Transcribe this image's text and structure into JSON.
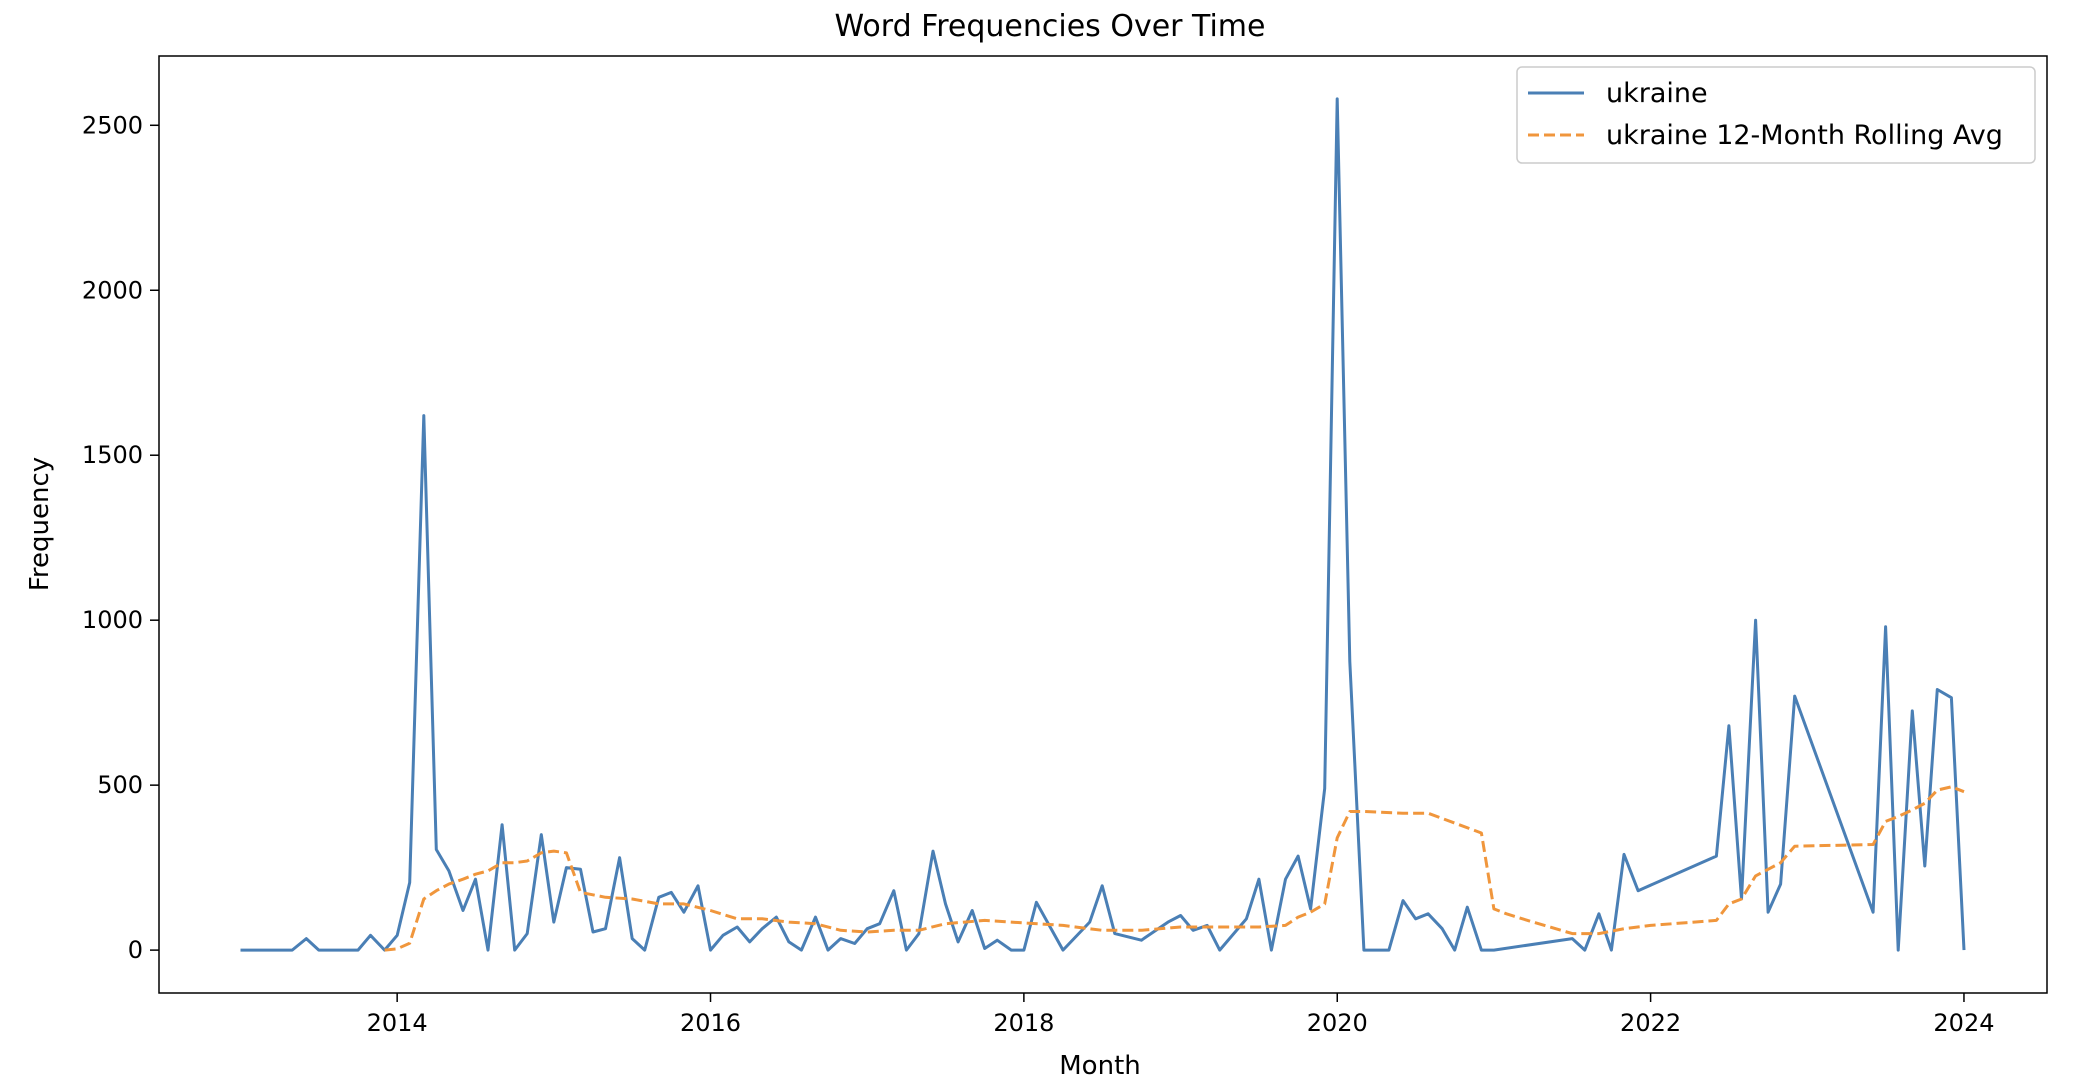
{
  "chart_data": {
    "type": "line",
    "title": "Word Frequencies Over Time",
    "xlabel": "Month",
    "ylabel": "Frequency",
    "xlim": [
      2012.48,
      2024.53
    ],
    "ylim": [
      -130,
      2710
    ],
    "xticks": [
      2014,
      2016,
      2018,
      2020,
      2022,
      2024
    ],
    "yticks": [
      0,
      500,
      1000,
      1500,
      2000,
      2500
    ],
    "grid": false,
    "legend_position": "top-right",
    "colors": {
      "series": "#4a7fb5",
      "rolling": "#f0963c",
      "axes": "#000000"
    },
    "series": [
      {
        "name": "ukraine",
        "style": "solid",
        "x": [
          2013.0,
          2013.33,
          2013.42,
          2013.5,
          2013.75,
          2013.83,
          2013.92,
          2014.0,
          2014.08,
          2014.17,
          2014.25,
          2014.33,
          2014.42,
          2014.5,
          2014.58,
          2014.67,
          2014.75,
          2014.83,
          2014.92,
          2015.0,
          2015.08,
          2015.17,
          2015.25,
          2015.33,
          2015.42,
          2015.5,
          2015.58,
          2015.67,
          2015.75,
          2015.83,
          2015.92,
          2016.0,
          2016.08,
          2016.17,
          2016.25,
          2016.33,
          2016.42,
          2016.5,
          2016.58,
          2016.67,
          2016.75,
          2016.83,
          2016.92,
          2017.0,
          2017.08,
          2017.17,
          2017.25,
          2017.33,
          2017.42,
          2017.5,
          2017.58,
          2017.67,
          2017.75,
          2017.83,
          2017.92,
          2018.0,
          2018.08,
          2018.25,
          2018.42,
          2018.5,
          2018.58,
          2018.75,
          2018.92,
          2019.0,
          2019.08,
          2019.17,
          2019.25,
          2019.42,
          2019.5,
          2019.58,
          2019.67,
          2019.75,
          2019.83,
          2019.92,
          2020.0,
          2020.08,
          2020.17,
          2020.33,
          2020.42,
          2020.5,
          2020.58,
          2020.67,
          2020.75,
          2020.83,
          2020.92,
          2021.0,
          2021.5,
          2021.58,
          2021.67,
          2021.75,
          2021.83,
          2021.92,
          2022.42,
          2022.5,
          2022.58,
          2022.67,
          2022.75,
          2022.83,
          2022.92,
          2023.42,
          2023.5,
          2023.58,
          2023.67,
          2023.75,
          2023.83,
          2023.92,
          2024.0
        ],
        "values": [
          0,
          0,
          35,
          0,
          0,
          45,
          0,
          45,
          205,
          1620,
          305,
          240,
          120,
          215,
          0,
          380,
          0,
          50,
          350,
          85,
          250,
          245,
          55,
          65,
          280,
          35,
          0,
          160,
          175,
          115,
          195,
          0,
          45,
          70,
          25,
          65,
          100,
          25,
          0,
          100,
          0,
          35,
          20,
          65,
          80,
          180,
          0,
          50,
          300,
          140,
          25,
          120,
          5,
          30,
          0,
          0,
          145,
          0,
          85,
          195,
          50,
          30,
          85,
          105,
          60,
          75,
          0,
          95,
          215,
          0,
          215,
          285,
          125,
          490,
          2580,
          875,
          0,
          0,
          150,
          95,
          110,
          65,
          0,
          130,
          0,
          0,
          35,
          0,
          110,
          0,
          290,
          180,
          285,
          680,
          155,
          1000,
          115,
          200,
          770,
          115,
          980,
          0,
          725,
          255,
          790,
          765,
          0
        ]
      },
      {
        "name": "ukraine 12-Month Rolling Avg",
        "style": "dashed",
        "x": [
          2013.92,
          2014.0,
          2014.08,
          2014.17,
          2014.25,
          2014.33,
          2014.42,
          2014.5,
          2014.58,
          2014.67,
          2014.75,
          2014.83,
          2014.92,
          2015.0,
          2015.08,
          2015.17,
          2015.33,
          2015.5,
          2015.67,
          2015.83,
          2016.0,
          2016.17,
          2016.33,
          2016.5,
          2016.67,
          2016.83,
          2017.0,
          2017.17,
          2017.33,
          2017.5,
          2017.75,
          2017.92,
          2018.25,
          2018.5,
          2018.75,
          2019.0,
          2019.25,
          2019.5,
          2019.67,
          2019.75,
          2019.83,
          2019.92,
          2020.0,
          2020.08,
          2020.17,
          2020.42,
          2020.58,
          2020.75,
          2020.92,
          2021.0,
          2021.08,
          2021.25,
          2021.5,
          2021.67,
          2021.83,
          2022.0,
          2022.42,
          2022.5,
          2022.58,
          2022.67,
          2022.75,
          2022.83,
          2022.92,
          2023.42,
          2023.5,
          2023.58,
          2023.67,
          2023.75,
          2023.83,
          2023.92,
          2024.0
        ],
        "values": [
          0,
          4,
          21,
          155,
          180,
          200,
          215,
          230,
          240,
          265,
          265,
          270,
          295,
          300,
          295,
          175,
          160,
          155,
          140,
          140,
          120,
          95,
          95,
          85,
          80,
          60,
          55,
          60,
          60,
          80,
          90,
          85,
          75,
          60,
          60,
          70,
          70,
          70,
          75,
          100,
          115,
          140,
          340,
          420,
          420,
          415,
          415,
          385,
          355,
          125,
          110,
          85,
          50,
          50,
          65,
          75,
          90,
          140,
          155,
          225,
          245,
          265,
          315,
          320,
          390,
          405,
          425,
          445,
          485,
          495,
          480
        ]
      }
    ]
  }
}
